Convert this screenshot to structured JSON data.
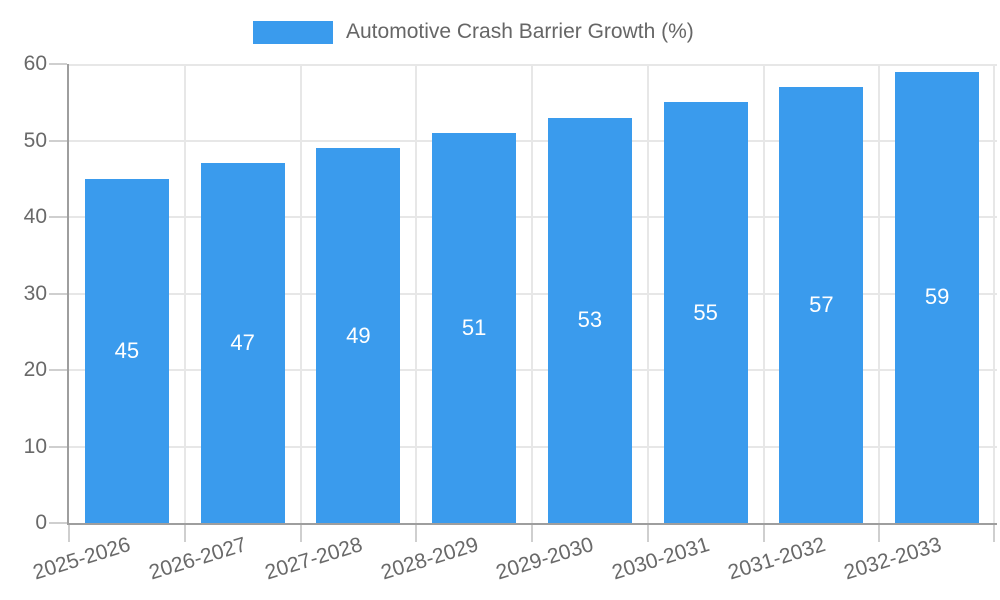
{
  "chart_data": {
    "type": "bar",
    "title": "",
    "legend": {
      "label": "Automotive Crash Barrier Growth (%)",
      "position": "top"
    },
    "categories": [
      "2025-2026",
      "2026-2027",
      "2027-2028",
      "2028-2029",
      "2029-2030",
      "2030-2031",
      "2031-2032",
      "2032-2033"
    ],
    "values": [
      45,
      47,
      49,
      51,
      53,
      55,
      57,
      59
    ],
    "bar_value_labels": [
      "45",
      "47",
      "49",
      "51",
      "53",
      "55",
      "57",
      "59"
    ],
    "xlabel": "",
    "ylabel": "",
    "ylim": [
      0,
      60
    ],
    "yticks": [
      0,
      10,
      20,
      30,
      40,
      50,
      60
    ],
    "ytick_labels": [
      "0",
      "10",
      "20",
      "30",
      "40",
      "50",
      "60"
    ],
    "grid": true,
    "x_label_rotation_deg": -17,
    "colors": {
      "bar": "#3a9bed",
      "grid": "#e7e7e7",
      "axis": "#9e9e9e",
      "tick_mark": "#cfcfcf",
      "tick_text": "#696969",
      "legend_text": "#666666",
      "bar_label_text": "#ffffff",
      "background": "#ffffff"
    }
  }
}
